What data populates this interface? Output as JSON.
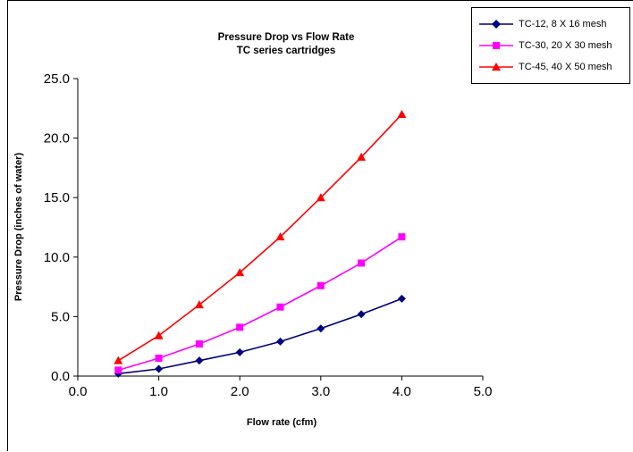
{
  "chart_data": {
    "type": "line",
    "title": "Pressure Drop vs Flow Rate",
    "subtitle": "TC series cartridges",
    "xlabel": "Flow rate (cfm)",
    "ylabel": "Pressure Drop (inches of water)",
    "xlim": [
      0,
      5
    ],
    "ylim": [
      0,
      25
    ],
    "x_ticks": [
      "0.0",
      "1.0",
      "2.0",
      "3.0",
      "4.0",
      "5.0"
    ],
    "y_ticks": [
      "0.0",
      "5.0",
      "10.0",
      "15.0",
      "20.0",
      "25.0"
    ],
    "grid": false,
    "legend_position": "top-right",
    "x": [
      0.5,
      1.0,
      1.5,
      2.0,
      2.5,
      3.0,
      3.5,
      4.0
    ],
    "series": [
      {
        "name": "TC-12, 8 X 16 mesh",
        "color": "#000080",
        "marker": "diamond",
        "values": [
          0.2,
          0.6,
          1.3,
          2.0,
          2.9,
          4.0,
          5.2,
          6.5
        ]
      },
      {
        "name": "TC-30, 20 X 30 mesh",
        "color": "#ff00ff",
        "marker": "square",
        "values": [
          0.5,
          1.5,
          2.7,
          4.1,
          5.8,
          7.6,
          9.5,
          11.7
        ]
      },
      {
        "name": "TC-45, 40 X 50 mesh",
        "color": "#ff0000",
        "marker": "triangle",
        "values": [
          1.3,
          3.4,
          6.0,
          8.7,
          11.7,
          15.0,
          18.4,
          22.0
        ]
      }
    ]
  }
}
